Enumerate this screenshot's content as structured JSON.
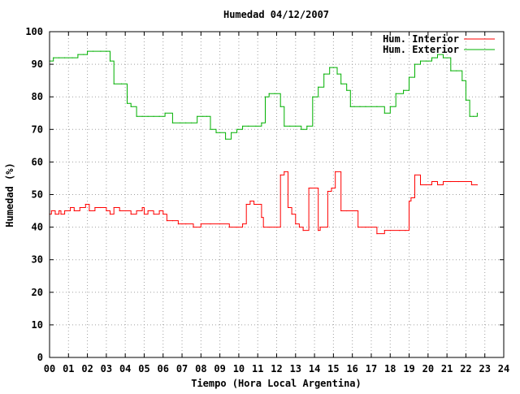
{
  "chart_data": {
    "type": "line",
    "title": "Humedad 04/12/2007",
    "xlabel": "Tiempo (Hora Local Argentina)",
    "ylabel": "Humedad (%)",
    "xlim": [
      0,
      24
    ],
    "ylim": [
      0,
      100
    ],
    "x_ticks": [
      "00",
      "01",
      "02",
      "03",
      "04",
      "05",
      "06",
      "07",
      "08",
      "09",
      "10",
      "11",
      "12",
      "13",
      "14",
      "15",
      "16",
      "17",
      "18",
      "19",
      "20",
      "21",
      "22",
      "23",
      "24"
    ],
    "y_ticks": [
      0,
      10,
      20,
      30,
      40,
      50,
      60,
      70,
      80,
      90,
      100
    ],
    "grid": true,
    "legend_position": "top-right",
    "series": [
      {
        "name": "Hum. Interior",
        "color": "#ff0000",
        "x": [
          0.0,
          0.1,
          0.3,
          0.5,
          0.6,
          0.8,
          1.1,
          1.3,
          1.6,
          1.9,
          2.1,
          2.4,
          2.7,
          3.0,
          3.2,
          3.4,
          3.7,
          4.0,
          4.3,
          4.6,
          4.9,
          5.0,
          5.2,
          5.5,
          5.8,
          6.0,
          6.2,
          6.5,
          6.8,
          7.0,
          7.2,
          7.6,
          8.0,
          8.5,
          9.0,
          9.5,
          9.9,
          10.2,
          10.4,
          10.6,
          10.8,
          11.2,
          11.3,
          11.6,
          12.0,
          12.2,
          12.4,
          12.6,
          12.8,
          13.0,
          13.2,
          13.4,
          13.7,
          13.8,
          14.0,
          14.2,
          14.3,
          14.7,
          14.9,
          15.1,
          15.4,
          15.7,
          16.0,
          16.3,
          16.7,
          17.0,
          17.3,
          17.7,
          18.0,
          18.5,
          18.8,
          19.0,
          19.1,
          19.3,
          19.6,
          19.9,
          20.2,
          20.5,
          20.8,
          21.2,
          21.6,
          22.0,
          22.3,
          22.6
        ],
        "y": [
          44,
          45,
          44,
          45,
          44,
          45,
          46,
          45,
          46,
          47,
          45,
          46,
          46,
          45,
          44,
          46,
          45,
          45,
          44,
          45,
          46,
          44,
          45,
          44,
          45,
          44,
          42,
          42,
          41,
          41,
          41,
          40,
          41,
          41,
          41,
          40,
          40,
          41,
          47,
          48,
          47,
          43,
          40,
          40,
          40,
          56,
          57,
          46,
          44,
          41,
          40,
          39,
          52,
          52,
          52,
          39,
          40,
          51,
          52,
          57,
          45,
          45,
          45,
          40,
          40,
          40,
          38,
          39,
          39,
          39,
          39,
          48,
          49,
          56,
          53,
          53,
          54,
          53,
          54,
          54,
          54,
          54,
          53,
          53
        ]
      },
      {
        "name": "Hum. Exterior",
        "color": "#00b000",
        "x": [
          0.0,
          0.2,
          0.5,
          0.8,
          1.2,
          1.5,
          1.8,
          2.0,
          2.3,
          2.7,
          3.0,
          3.2,
          3.4,
          3.8,
          4.1,
          4.3,
          4.6,
          4.9,
          5.2,
          5.5,
          5.8,
          6.1,
          6.5,
          6.9,
          7.2,
          7.5,
          7.8,
          8.1,
          8.3,
          8.5,
          8.8,
          9.0,
          9.3,
          9.6,
          9.9,
          10.2,
          10.5,
          10.9,
          11.2,
          11.4,
          11.6,
          11.9,
          12.2,
          12.4,
          12.7,
          13.0,
          13.3,
          13.6,
          13.9,
          14.2,
          14.5,
          14.8,
          15.0,
          15.2,
          15.4,
          15.7,
          15.9,
          16.1,
          16.4,
          16.7,
          17.0,
          17.3,
          17.7,
          18.0,
          18.3,
          18.7,
          19.0,
          19.3,
          19.6,
          19.9,
          20.2,
          20.5,
          20.8,
          21.2,
          21.5,
          21.8,
          22.0,
          22.2,
          22.4,
          22.6
        ],
        "y": [
          91,
          92,
          92,
          92,
          92,
          93,
          93,
          94,
          94,
          94,
          94,
          91,
          84,
          84,
          78,
          77,
          74,
          74,
          74,
          74,
          74,
          75,
          72,
          72,
          72,
          72,
          74,
          74,
          74,
          70,
          69,
          69,
          67,
          69,
          70,
          71,
          71,
          71,
          72,
          80,
          81,
          81,
          77,
          71,
          71,
          71,
          70,
          71,
          80,
          83,
          87,
          89,
          89,
          87,
          84,
          82,
          77,
          77,
          77,
          77,
          77,
          77,
          75,
          77,
          81,
          82,
          86,
          90,
          91,
          91,
          92,
          93,
          92,
          88,
          88,
          85,
          79,
          74,
          74,
          75
        ]
      }
    ]
  }
}
